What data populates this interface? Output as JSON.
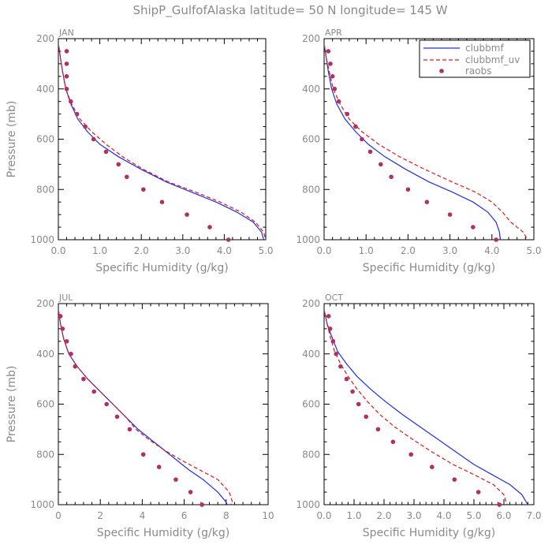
{
  "title": "ShipP_GulfofAlaska  latitude= 50 N longitude= 145 W",
  "ylabel": "Pressure (mb)",
  "colors": {
    "clubbmf": "#1f2ee6",
    "clubbmf_uv": "#e01818",
    "raobs": "#b03060",
    "text": "#8a8a8a"
  },
  "legend": {
    "entries": [
      "clubbmf",
      "clubbmf_uv",
      "raobs"
    ],
    "placement": "top-right of APR panel"
  },
  "chart_data": [
    {
      "type": "line",
      "panel": "JAN",
      "xlabel": "Specific Humidity (g/kg)",
      "ylabel": "Pressure (mb)",
      "xlim": [
        0,
        5
      ],
      "ylim": [
        1000,
        200
      ],
      "xticks": [
        "0.0",
        "1.0",
        "2.0",
        "3.0",
        "4.0",
        "5.0"
      ],
      "yticks": [
        "200",
        "400",
        "600",
        "800",
        "1000"
      ],
      "series": [
        {
          "name": "clubbmf",
          "style": "solid",
          "x": [
            0.01,
            0.05,
            0.1,
            0.18,
            0.3,
            0.47,
            0.7,
            1.0,
            1.45,
            2.0,
            2.6,
            3.2,
            3.8,
            4.3,
            4.7,
            4.9,
            4.95
          ],
          "y": [
            230,
            275,
            330,
            400,
            460,
            520,
            570,
            620,
            670,
            720,
            770,
            810,
            850,
            890,
            930,
            970,
            1000
          ]
        },
        {
          "name": "clubbmf_uv",
          "style": "dashed",
          "x": [
            0.01,
            0.05,
            0.1,
            0.18,
            0.32,
            0.52,
            0.8,
            1.15,
            1.55,
            2.05,
            2.65,
            3.3,
            3.9,
            4.4,
            4.75,
            4.95,
            5.0
          ],
          "y": [
            230,
            275,
            330,
            400,
            460,
            520,
            570,
            620,
            670,
            720,
            770,
            810,
            850,
            890,
            930,
            970,
            1000
          ]
        },
        {
          "name": "raobs",
          "style": "points",
          "x": [
            0.2,
            0.2,
            0.2,
            0.2,
            0.3,
            0.45,
            0.65,
            0.85,
            1.15,
            1.45,
            1.65,
            2.05,
            2.5,
            3.1,
            3.65,
            4.1
          ],
          "y": [
            250,
            300,
            350,
            400,
            450,
            500,
            550,
            600,
            650,
            700,
            750,
            800,
            850,
            900,
            950,
            1000
          ]
        }
      ]
    },
    {
      "type": "line",
      "panel": "APR",
      "xlabel": "Specific Humidity (g/kg)",
      "ylabel": "",
      "xlim": [
        0,
        5
      ],
      "ylim": [
        1000,
        200
      ],
      "xticks": [
        "0.0",
        "1.0",
        "2.0",
        "3.0",
        "4.0",
        "5.0"
      ],
      "yticks": [
        "200",
        "400",
        "600",
        "800",
        "1000"
      ],
      "series": [
        {
          "name": "clubbmf",
          "style": "solid",
          "x": [
            0.01,
            0.05,
            0.1,
            0.18,
            0.3,
            0.5,
            0.75,
            1.05,
            1.45,
            1.95,
            2.5,
            3.05,
            3.55,
            3.9,
            4.1,
            4.18,
            4.2
          ],
          "y": [
            230,
            275,
            330,
            400,
            460,
            520,
            570,
            620,
            670,
            720,
            770,
            810,
            850,
            890,
            930,
            970,
            1000
          ]
        },
        {
          "name": "clubbmf_uv",
          "style": "dashed",
          "x": [
            0.01,
            0.05,
            0.12,
            0.22,
            0.38,
            0.6,
            0.9,
            1.3,
            1.8,
            2.4,
            3.05,
            3.6,
            4.0,
            4.25,
            4.45,
            4.75,
            4.85
          ],
          "y": [
            230,
            275,
            330,
            400,
            460,
            520,
            570,
            620,
            670,
            720,
            770,
            810,
            850,
            890,
            930,
            970,
            1000
          ]
        },
        {
          "name": "raobs",
          "style": "points",
          "x": [
            0.1,
            0.15,
            0.2,
            0.25,
            0.35,
            0.55,
            0.75,
            0.9,
            1.1,
            1.35,
            1.6,
            2.0,
            2.45,
            3.0,
            3.55,
            4.1
          ],
          "y": [
            250,
            300,
            350,
            400,
            450,
            500,
            550,
            600,
            650,
            700,
            750,
            800,
            850,
            900,
            950,
            1000
          ]
        }
      ]
    },
    {
      "type": "line",
      "panel": "JUL",
      "xlabel": "Specific Humidity (g/kg)",
      "ylabel": "Pressure (mb)",
      "xlim": [
        0,
        10
      ],
      "ylim": [
        1000,
        200
      ],
      "xticks": [
        "0",
        "2",
        "4",
        "6",
        "8",
        "10"
      ],
      "yticks": [
        "200",
        "400",
        "600",
        "800",
        "1000"
      ],
      "series": [
        {
          "name": "clubbmf",
          "style": "solid",
          "x": [
            0.01,
            0.1,
            0.25,
            0.5,
            0.9,
            1.4,
            2.0,
            2.6,
            3.2,
            3.8,
            4.4,
            5.0,
            5.6,
            6.2,
            6.9,
            7.6,
            8.0,
            8.05
          ],
          "y": [
            230,
            280,
            340,
            400,
            450,
            500,
            550,
            600,
            650,
            700,
            740,
            780,
            820,
            860,
            900,
            950,
            990,
            1000
          ]
        },
        {
          "name": "clubbmf_uv",
          "style": "dashed",
          "x": [
            0.01,
            0.1,
            0.25,
            0.5,
            0.9,
            1.4,
            2.0,
            2.6,
            3.2,
            3.7,
            4.3,
            5.0,
            5.8,
            6.7,
            7.6,
            8.15,
            8.3,
            8.2
          ],
          "y": [
            230,
            280,
            340,
            400,
            450,
            500,
            550,
            600,
            650,
            700,
            740,
            780,
            820,
            860,
            900,
            950,
            990,
            1000
          ]
        },
        {
          "name": "raobs",
          "style": "points",
          "x": [
            0.1,
            0.2,
            0.4,
            0.6,
            0.8,
            1.2,
            1.7,
            2.3,
            2.8,
            3.4,
            4.05,
            4.8,
            5.6,
            6.3,
            6.85
          ],
          "y": [
            250,
            300,
            350,
            400,
            450,
            500,
            550,
            600,
            650,
            700,
            800,
            850,
            900,
            950,
            1000
          ]
        }
      ]
    },
    {
      "type": "line",
      "panel": "OCT",
      "xlabel": "Specific Humidity (g/kg)",
      "ylabel": "",
      "xlim": [
        0,
        7
      ],
      "ylim": [
        1000,
        200
      ],
      "xticks": [
        "0.0",
        "1.0",
        "2.0",
        "3.0",
        "4.0",
        "5.0",
        "6.0",
        "7.0"
      ],
      "yticks": [
        "200",
        "400",
        "600",
        "800",
        "1000"
      ],
      "series": [
        {
          "name": "clubbmf",
          "style": "solid",
          "x": [
            0.01,
            0.1,
            0.25,
            0.45,
            0.75,
            1.1,
            1.55,
            2.05,
            2.6,
            3.2,
            3.8,
            4.4,
            5.0,
            5.6,
            6.2,
            6.6,
            6.8
          ],
          "y": [
            230,
            280,
            330,
            390,
            440,
            490,
            540,
            590,
            640,
            690,
            740,
            790,
            840,
            880,
            920,
            960,
            1000
          ]
        },
        {
          "name": "clubbmf_uv",
          "style": "dashed",
          "x": [
            0.01,
            0.1,
            0.2,
            0.35,
            0.55,
            0.8,
            1.1,
            1.45,
            1.85,
            2.35,
            2.95,
            3.6,
            4.3,
            5.0,
            5.65,
            6.0,
            6.1
          ],
          "y": [
            230,
            280,
            330,
            390,
            440,
            490,
            540,
            590,
            640,
            690,
            740,
            790,
            840,
            880,
            920,
            960,
            1000
          ]
        },
        {
          "name": "raobs",
          "style": "points",
          "x": [
            0.15,
            0.2,
            0.3,
            0.4,
            0.55,
            0.75,
            0.95,
            1.15,
            1.4,
            1.8,
            2.3,
            2.9,
            3.6,
            4.35,
            5.15,
            5.85
          ],
          "y": [
            250,
            300,
            350,
            400,
            450,
            500,
            550,
            600,
            650,
            700,
            750,
            800,
            850,
            900,
            950,
            1000
          ]
        }
      ]
    }
  ]
}
